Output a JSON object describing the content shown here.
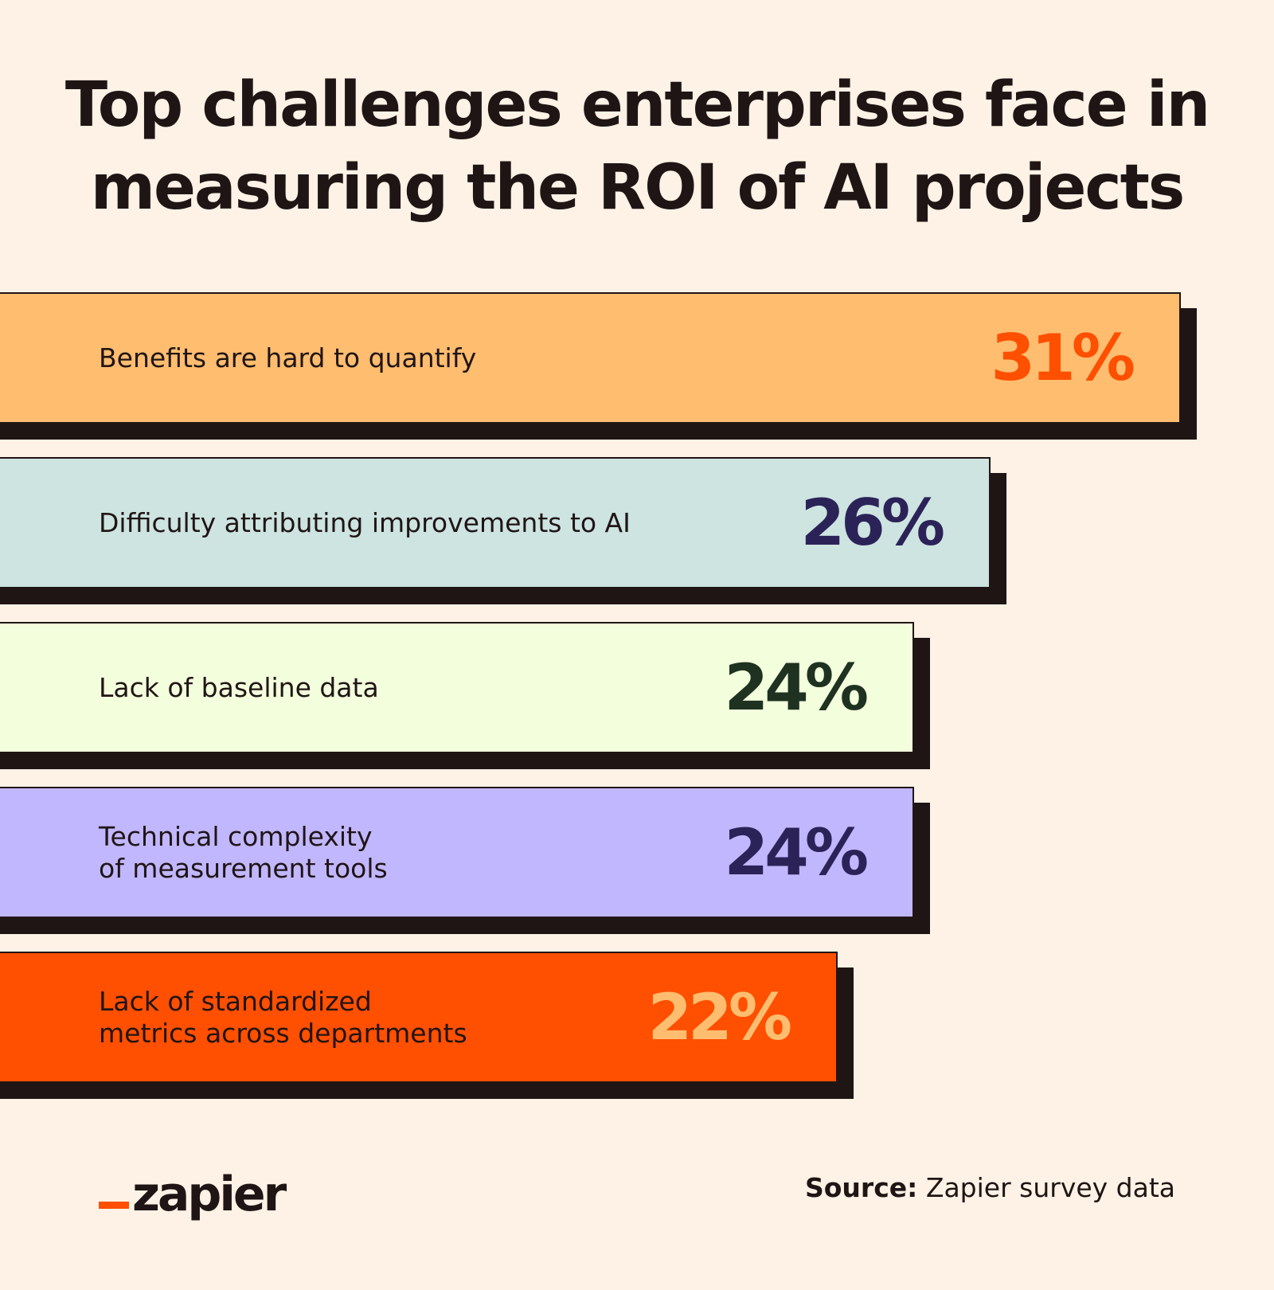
{
  "title_lines": [
    "Top challenges enterprises face in",
    "measuring the ROI of AI projects"
  ],
  "chart_data": {
    "type": "bar",
    "orientation": "horizontal",
    "categories": [
      "Benefits are hard to quantify",
      "Difficulty attributing improvements to AI",
      "Lack of baseline data",
      "Technical complexity\nof measurement tools",
      "Lack of standardized\nmetrics across departments"
    ],
    "values": [
      31,
      26,
      24,
      24,
      22
    ],
    "value_labels": [
      "31%",
      "26%",
      "24%",
      "24%",
      "22%"
    ],
    "bar_colors": [
      "#ffbd6f",
      "#cde4e1",
      "#f2fedc",
      "#c1b7ff",
      "#ff4f00"
    ],
    "label_colors": [
      "#ff4f00",
      "#2b2358",
      "#1f3121",
      "#2b2358",
      "#ffbd6f"
    ],
    "unit": "%",
    "grid": false,
    "legend": "none"
  },
  "footer": {
    "logo_text": "zapier",
    "source_label": "Source:",
    "source_text": " Zapier survey data"
  }
}
